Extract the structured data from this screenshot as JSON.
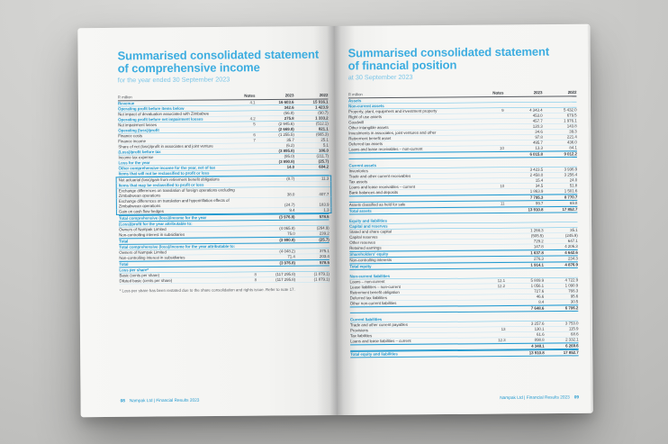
{
  "brand": {
    "accent_color": "#2199cf",
    "title_color": "#3dade0"
  },
  "left_page": {
    "title_line1": "Summarised consolidated statement",
    "title_line2": "of comprehensive income",
    "subtitle": "for the year ended 30 September 2023",
    "table": {
      "unit_label": "R million",
      "columns": [
        "Notes",
        "2023",
        "2022"
      ],
      "rows": [
        {
          "label": "Revenue",
          "note": "4.1",
          "y23": "16 603.6",
          "y22": "15 916.1",
          "cls": "sec"
        },
        {
          "label": "Operating profit before items below",
          "note": "",
          "y23": "342.6",
          "y22": "1 423.9",
          "cls": "sec"
        },
        {
          "label": "Net impact of devaluation associated with Zimbabwe",
          "note": "",
          "y23": "(66.8)",
          "y22": "(90.7)",
          "cls": "det"
        },
        {
          "label": "Operating profit before net impairment losses",
          "note": "4.2",
          "y23": "275.8",
          "y22": "1 333.2",
          "cls": "sec"
        },
        {
          "label": "Net impairment losses",
          "note": "5",
          "y23": "(2 945.6)",
          "y22": "(512.1)",
          "cls": "det"
        },
        {
          "label": "Operating (loss)/profit",
          "note": "",
          "y23": "(2 669.8)",
          "y22": "821.1",
          "cls": "sec"
        },
        {
          "label": "Finance costs",
          "note": "6",
          "y23": "(1 255.5)",
          "y22": "(665.3)",
          "cls": "det"
        },
        {
          "label": "Finance income",
          "note": "7",
          "y23": "35.7",
          "y22": "25.1",
          "cls": "det"
        },
        {
          "label": "Share of net (loss)/profit in associates and joint venture",
          "note": "",
          "y23": "(6.2)",
          "y22": "5.1",
          "cls": "det"
        },
        {
          "label": "(Loss)/profit before tax",
          "note": "",
          "y23": "(3 895.8)",
          "y22": "186.0",
          "cls": "sec"
        },
        {
          "label": "Income tax expense",
          "note": "",
          "y23": "(95.0)",
          "y22": "(211.7)",
          "cls": "det"
        },
        {
          "label": "Loss for the year",
          "note": "",
          "y23": "(3 990.8)",
          "y22": "(25.7)",
          "cls": "sec"
        },
        {
          "label": "Other comprehensive income for the year, net of tax",
          "note": "",
          "y23": "14.0",
          "y22": "604.2",
          "cls": "sec"
        },
        {
          "label": "Items that will not be reclassified to profit or loss",
          "note": "",
          "y23": "",
          "y22": "",
          "cls": "sec"
        },
        {
          "label": "Net actuarial (loss)/gain from retirement benefit obligations",
          "note": "",
          "y23": "(8.7)",
          "y22": "11.3",
          "cls": "det bx bx-t"
        },
        {
          "label": "Items that may be reclassified to profit or loss",
          "note": "",
          "y23": "",
          "y22": "",
          "cls": "sec bx"
        },
        {
          "label": "Exchange differences on translation of foreign operations excluding Zimbabwean operations",
          "note": "",
          "y23": "38.0",
          "y22": "407.7",
          "cls": "det bx"
        },
        {
          "label": "Exchange differences on translation and hyperinflation effects of Zimbabwean operations",
          "note": "",
          "y23": "(24.7)",
          "y22": "183.9",
          "cls": "det bx"
        },
        {
          "label": "Gain on cash flow hedges",
          "note": "",
          "y23": "9.4",
          "y22": "1.3",
          "cls": "det bx bx-b"
        },
        {
          "label": "Total comprehensive (loss)/income for the year",
          "note": "",
          "y23": "(3 976.8)",
          "y22": "578.5",
          "cls": "tot"
        },
        {
          "label": "(Loss)/profit for the year attributable to:",
          "note": "",
          "y23": "",
          "y22": "",
          "cls": "sec"
        },
        {
          "label": "Owners of Nampak Limited",
          "note": "",
          "y23": "(4 065.8)",
          "y22": "(264.9)",
          "cls": "det"
        },
        {
          "label": "Non-controlling interest in subsidiaries",
          "note": "",
          "y23": "75.0",
          "y22": "239.2",
          "cls": "det"
        },
        {
          "label": "Total",
          "note": "",
          "y23": "(3 990.8)",
          "y22": "(25.7)",
          "cls": "tot"
        },
        {
          "label": "Total comprehensive (loss)/income for the year attributable to:",
          "note": "",
          "y23": "",
          "y22": "",
          "cls": "sec"
        },
        {
          "label": "Owners of Nampak Limited",
          "note": "",
          "y23": "(4 048.2)",
          "y22": "375.1",
          "cls": "det"
        },
        {
          "label": "Non-controlling interest in subsidiaries",
          "note": "",
          "y23": "71.4",
          "y22": "203.4",
          "cls": "det"
        },
        {
          "label": "Total",
          "note": "",
          "y23": "(3 976.8)",
          "y22": "578.5",
          "cls": "tot"
        },
        {
          "label": "Loss per share*",
          "note": "",
          "y23": "",
          "y22": "",
          "cls": "sec"
        },
        {
          "label": "Basic (cents per share)",
          "note": "8",
          "y23": "(117 295.8)",
          "y22": "(1 879.1)",
          "cls": "det"
        },
        {
          "label": "Diluted basic (cents per share)",
          "note": "8",
          "y23": "(117 295.8)",
          "y22": "(1 879.1)",
          "cls": "det"
        }
      ]
    },
    "footnote": "* Loss per share has been restated due to the share consolidation and rights issue. Refer to note 17.",
    "footer": {
      "page_number": "08",
      "text": "Nampak Ltd | Financial Results 2023"
    }
  },
  "right_page": {
    "title_line1": "Summarised consolidated statement",
    "title_line2": "of financial position",
    "subtitle": "at 30 September 2023",
    "table": {
      "unit_label": "R million",
      "columns": [
        "Notes",
        "2023",
        "2022"
      ],
      "rows": [
        {
          "label": "Assets",
          "note": "",
          "y23": "",
          "y22": "",
          "cls": "sec"
        },
        {
          "label": "Non-current assets",
          "note": "",
          "y23": "",
          "y22": "",
          "cls": "sec"
        },
        {
          "label": "Property, plant, equipment and investment property",
          "note": "9",
          "y23": "4 343.4",
          "y22": "5 432.0",
          "cls": "det"
        },
        {
          "label": "Right of use assets",
          "note": "",
          "y23": "453.0",
          "y22": "679.5",
          "cls": "det"
        },
        {
          "label": "Goodwill",
          "note": "",
          "y23": "457.7",
          "y22": "1 976.1",
          "cls": "det"
        },
        {
          "label": "Other intangible assets",
          "note": "",
          "y23": "120.3",
          "y22": "143.8",
          "cls": "det"
        },
        {
          "label": "Investments in associates, joint ventures and other",
          "note": "",
          "y23": "34.6",
          "y22": "39.3",
          "cls": "det"
        },
        {
          "label": "Retirement benefit asset",
          "note": "",
          "y23": "97.8",
          "y22": "221.4",
          "cls": "det"
        },
        {
          "label": "Deferred tax assets",
          "note": "",
          "y23": "495.7",
          "y22": "436.0",
          "cls": "det"
        },
        {
          "label": "Loans and lease receivables – non-current",
          "note": "10",
          "y23": "13.3",
          "y22": "84.1",
          "cls": "det"
        },
        {
          "label": "",
          "note": "",
          "y23": "6 015.8",
          "y22": "9 012.2",
          "cls": "tot"
        },
        {
          "label": "",
          "note": "",
          "y23": "",
          "y22": "",
          "cls": "gap"
        },
        {
          "label": "Current assets",
          "note": "",
          "y23": "",
          "y22": "",
          "cls": "sec"
        },
        {
          "label": "Inventories",
          "note": "",
          "y23": "3 423.5",
          "y22": "3 936.9",
          "cls": "det"
        },
        {
          "label": "Trade and other current receivables",
          "note": "",
          "y23": "2 458.0",
          "y22": "3 256.4",
          "cls": "det"
        },
        {
          "label": "Tax assets",
          "note": "",
          "y23": "15.4",
          "y22": "24.0",
          "cls": "det"
        },
        {
          "label": "Loans and lease receivables – current",
          "note": "10",
          "y23": "34.5",
          "y22": "51.8",
          "cls": "det"
        },
        {
          "label": "Bank balances and deposits",
          "note": "",
          "y23": "1 863.9",
          "y22": "1 501.6",
          "cls": "det"
        },
        {
          "label": "",
          "note": "",
          "y23": "7 795.3",
          "y22": "8 770.7",
          "cls": "tot"
        },
        {
          "label": "Assets classified as held for sale",
          "note": "11",
          "y23": "99.7",
          "y22": "69.8",
          "cls": "det"
        },
        {
          "label": "Total assets",
          "note": "",
          "y23": "13 910.8",
          "y22": "17 852.7",
          "cls": "tot"
        },
        {
          "label": "",
          "note": "",
          "y23": "",
          "y22": "",
          "cls": "gap"
        },
        {
          "label": "Equity and liabilities",
          "note": "",
          "y23": "",
          "y22": "",
          "cls": "sec"
        },
        {
          "label": "Capital and reserves",
          "note": "",
          "y23": "",
          "y22": "",
          "cls": "sec"
        },
        {
          "label": "Stated and share capital",
          "note": "",
          "y23": "1 266.3",
          "y22": "35.1",
          "cls": "det"
        },
        {
          "label": "Capital reserves",
          "note": "",
          "y23": "(505.5)",
          "y22": "(245.9)",
          "cls": "det"
        },
        {
          "label": "Other reserves",
          "note": "",
          "y23": "729.2",
          "y22": "647.1",
          "cls": "det"
        },
        {
          "label": "Retained earnings",
          "note": "",
          "y23": "147.8",
          "y22": "4 206.3",
          "cls": "det"
        },
        {
          "label": "Shareholders' equity",
          "note": "",
          "y23": "1 637.8",
          "y22": "4 642.6",
          "cls": "tot"
        },
        {
          "label": "Non-controlling interests",
          "note": "",
          "y23": "276.3",
          "y22": "234.3",
          "cls": "det"
        },
        {
          "label": "Total equity",
          "note": "",
          "y23": "1 914.1",
          "y22": "4 876.9",
          "cls": "tot"
        },
        {
          "label": "",
          "note": "",
          "y23": "",
          "y22": "",
          "cls": "gap"
        },
        {
          "label": "Non-current liabilities",
          "note": "",
          "y23": "",
          "y22": "",
          "cls": "sec"
        },
        {
          "label": "Loans – non-current",
          "note": "12.1",
          "y23": "5 809.9",
          "y22": "4 722.9",
          "cls": "det"
        },
        {
          "label": "Lease liabilities – non-current",
          "note": "12.2",
          "y23": "1 056.1",
          "y22": "1 090.9",
          "cls": "det"
        },
        {
          "label": "Retirement benefit obligation",
          "note": "",
          "y23": "727.6",
          "y22": "766.3",
          "cls": "det"
        },
        {
          "label": "Deferred tax liabilities",
          "note": "",
          "y23": "46.6",
          "y22": "95.6",
          "cls": "det"
        },
        {
          "label": "Other non-current liabilities",
          "note": "",
          "y23": "8.4",
          "y22": "30.5",
          "cls": "det"
        },
        {
          "label": "",
          "note": "",
          "y23": "7 648.6",
          "y22": "6 706.2",
          "cls": "tot"
        },
        {
          "label": "",
          "note": "",
          "y23": "",
          "y22": "",
          "cls": "gap"
        },
        {
          "label": "Current liabilities",
          "note": "",
          "y23": "",
          "y22": "",
          "cls": "sec"
        },
        {
          "label": "Trade and other current payables",
          "note": "",
          "y23": "3 257.6",
          "y22": "3 753.0",
          "cls": "det"
        },
        {
          "label": "Provisions",
          "note": "13",
          "y23": "130.1",
          "y22": "115.9",
          "cls": "det"
        },
        {
          "label": "Tax liabilities",
          "note": "",
          "y23": "61.6",
          "y22": "68.6",
          "cls": "det"
        },
        {
          "label": "Loans and lease liabilities – current",
          "note": "12.3",
          "y23": "898.8",
          "y22": "2 332.1",
          "cls": "det"
        },
        {
          "label": "",
          "note": "",
          "y23": "4 348.1",
          "y22": "6 269.6",
          "cls": "tot"
        },
        {
          "label": "Total equity and liabilities",
          "note": "",
          "y23": "13 910.8",
          "y22": "17 852.7",
          "cls": "tot"
        }
      ]
    },
    "footer": {
      "page_number": "09",
      "text": "Nampak Ltd | Financial Results 2023"
    }
  }
}
